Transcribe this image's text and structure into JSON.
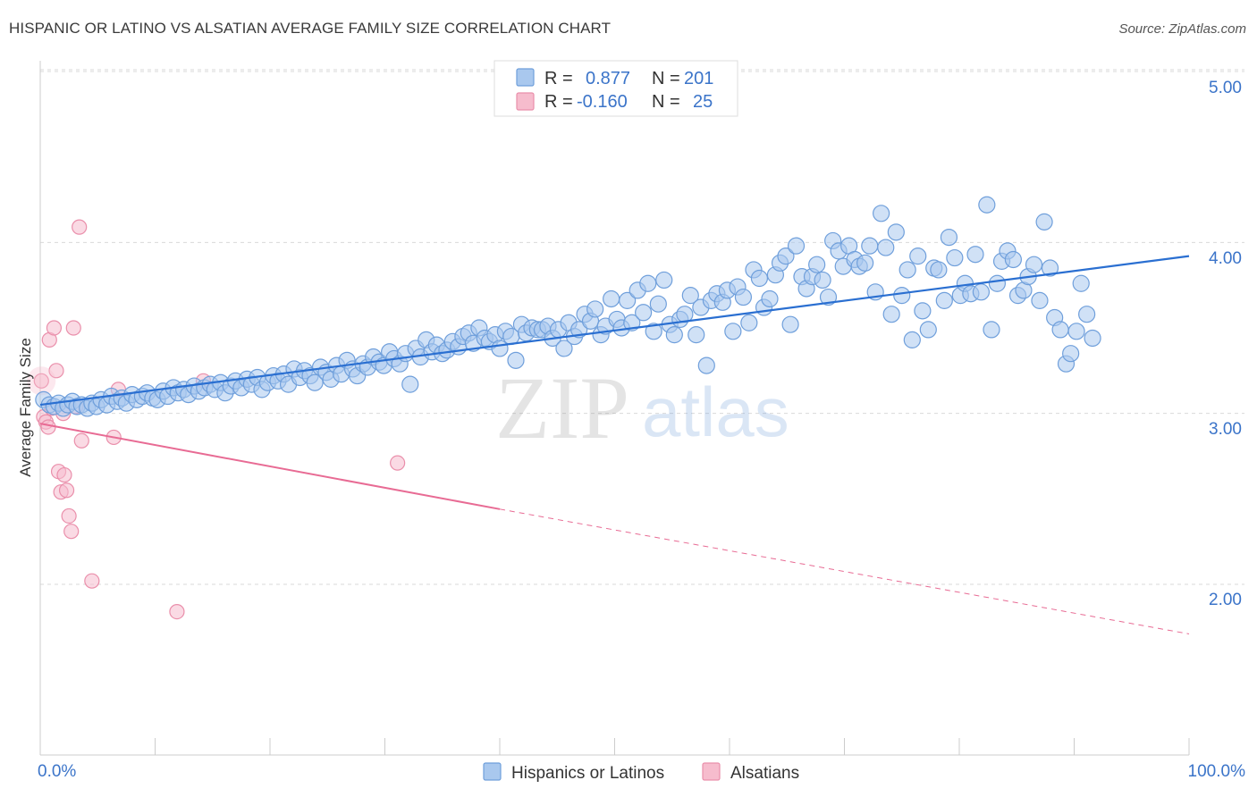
{
  "header": {
    "title": "HISPANIC OR LATINO VS ALSATIAN AVERAGE FAMILY SIZE CORRELATION CHART",
    "source": "Source: ZipAtlas.com"
  },
  "watermark": {
    "zip": "ZIP",
    "atlas": "atlas"
  },
  "colors": {
    "blue_fill": "#a9c8ee",
    "blue_stroke": "#6f9fdb",
    "blue_line": "#2a6fd1",
    "pink_fill": "#f6bccd",
    "pink_stroke": "#ea8fab",
    "pink_line": "#e86b94",
    "tick_text": "#3b74c9",
    "grid": "#d9d9d9"
  },
  "legend": {
    "rows": [
      {
        "r_label": "R =",
        "r_value": "0.877",
        "n_label": "N =",
        "n_value": "201"
      },
      {
        "r_label": "R =",
        "r_value": "-0.160",
        "n_label": "N =",
        "n_value": "25"
      }
    ]
  },
  "chart_data": {
    "type": "scatter",
    "title": "HISPANIC OR LATINO VS ALSATIAN AVERAGE FAMILY SIZE CORRELATION CHART",
    "xlabel": "",
    "ylabel": "Average Family Size",
    "xlim": [
      0,
      100
    ],
    "ylim": [
      1.0,
      5.1
    ],
    "x_tick_labels": [
      "0.0%",
      "100.0%"
    ],
    "y_ticks": [
      2.0,
      3.0,
      4.0,
      5.0
    ],
    "y_tick_labels": [
      "2.00",
      "3.00",
      "4.00",
      "5.00"
    ],
    "grid": true,
    "legend_position": "top-center",
    "series": [
      {
        "name": "Hispanics or Latinos",
        "color": "#a9c8ee",
        "r": 0.877,
        "n": 201,
        "trend": {
          "x": [
            0,
            100
          ],
          "y": [
            3.05,
            3.92
          ]
        },
        "points": [
          [
            0.3,
            3.08
          ],
          [
            0.8,
            3.05
          ],
          [
            1.2,
            3.04
          ],
          [
            1.6,
            3.06
          ],
          [
            2.0,
            3.03
          ],
          [
            2.4,
            3.05
          ],
          [
            2.8,
            3.07
          ],
          [
            3.2,
            3.04
          ],
          [
            3.6,
            3.05
          ],
          [
            4.1,
            3.03
          ],
          [
            4.5,
            3.06
          ],
          [
            4.9,
            3.04
          ],
          [
            5.3,
            3.08
          ],
          [
            5.8,
            3.05
          ],
          [
            6.2,
            3.1
          ],
          [
            6.7,
            3.07
          ],
          [
            7.1,
            3.09
          ],
          [
            7.5,
            3.06
          ],
          [
            8.0,
            3.11
          ],
          [
            8.4,
            3.08
          ],
          [
            8.9,
            3.1
          ],
          [
            9.3,
            3.12
          ],
          [
            9.8,
            3.09
          ],
          [
            10.2,
            3.08
          ],
          [
            10.7,
            3.13
          ],
          [
            11.1,
            3.1
          ],
          [
            11.6,
            3.15
          ],
          [
            12.0,
            3.12
          ],
          [
            12.5,
            3.14
          ],
          [
            12.9,
            3.11
          ],
          [
            13.4,
            3.16
          ],
          [
            13.8,
            3.13
          ],
          [
            14.3,
            3.15
          ],
          [
            14.8,
            3.17
          ],
          [
            15.2,
            3.14
          ],
          [
            15.7,
            3.18
          ],
          [
            16.1,
            3.12
          ],
          [
            16.6,
            3.16
          ],
          [
            17.0,
            3.19
          ],
          [
            17.5,
            3.15
          ],
          [
            18.0,
            3.2
          ],
          [
            18.4,
            3.17
          ],
          [
            18.9,
            3.21
          ],
          [
            19.3,
            3.14
          ],
          [
            19.8,
            3.18
          ],
          [
            20.3,
            3.22
          ],
          [
            20.7,
            3.19
          ],
          [
            21.2,
            3.23
          ],
          [
            21.6,
            3.17
          ],
          [
            22.1,
            3.26
          ],
          [
            22.6,
            3.21
          ],
          [
            23.0,
            3.25
          ],
          [
            23.5,
            3.22
          ],
          [
            23.9,
            3.18
          ],
          [
            24.4,
            3.27
          ],
          [
            24.9,
            3.24
          ],
          [
            25.3,
            3.2
          ],
          [
            25.8,
            3.28
          ],
          [
            26.2,
            3.23
          ],
          [
            26.7,
            3.31
          ],
          [
            27.2,
            3.26
          ],
          [
            27.6,
            3.22
          ],
          [
            28.1,
            3.29
          ],
          [
            28.5,
            3.27
          ],
          [
            29.0,
            3.33
          ],
          [
            29.5,
            3.3
          ],
          [
            29.9,
            3.28
          ],
          [
            30.4,
            3.36
          ],
          [
            30.8,
            3.32
          ],
          [
            31.3,
            3.29
          ],
          [
            31.8,
            3.35
          ],
          [
            32.2,
            3.17
          ],
          [
            32.7,
            3.38
          ],
          [
            33.1,
            3.33
          ],
          [
            33.6,
            3.43
          ],
          [
            34.1,
            3.36
          ],
          [
            34.5,
            3.4
          ],
          [
            35.0,
            3.35
          ],
          [
            35.4,
            3.37
          ],
          [
            35.9,
            3.42
          ],
          [
            36.4,
            3.39
          ],
          [
            36.8,
            3.45
          ],
          [
            37.3,
            3.47
          ],
          [
            37.7,
            3.41
          ],
          [
            38.2,
            3.5
          ],
          [
            38.7,
            3.44
          ],
          [
            39.1,
            3.42
          ],
          [
            39.6,
            3.46
          ],
          [
            40.0,
            3.38
          ],
          [
            40.5,
            3.48
          ],
          [
            41.0,
            3.45
          ],
          [
            41.4,
            3.31
          ],
          [
            41.9,
            3.52
          ],
          [
            42.3,
            3.47
          ],
          [
            42.8,
            3.5
          ],
          [
            43.3,
            3.49
          ],
          [
            43.7,
            3.49
          ],
          [
            44.2,
            3.51
          ],
          [
            44.6,
            3.44
          ],
          [
            45.1,
            3.49
          ],
          [
            45.6,
            3.38
          ],
          [
            46.0,
            3.53
          ],
          [
            46.5,
            3.45
          ],
          [
            46.9,
            3.49
          ],
          [
            47.4,
            3.58
          ],
          [
            47.9,
            3.54
          ],
          [
            48.3,
            3.61
          ],
          [
            48.8,
            3.46
          ],
          [
            49.2,
            3.51
          ],
          [
            49.7,
            3.67
          ],
          [
            50.2,
            3.55
          ],
          [
            50.6,
            3.5
          ],
          [
            51.1,
            3.66
          ],
          [
            51.5,
            3.53
          ],
          [
            52.0,
            3.72
          ],
          [
            52.5,
            3.59
          ],
          [
            52.9,
            3.76
          ],
          [
            53.4,
            3.48
          ],
          [
            53.8,
            3.64
          ],
          [
            54.3,
            3.78
          ],
          [
            54.8,
            3.52
          ],
          [
            55.2,
            3.46
          ],
          [
            55.7,
            3.55
          ],
          [
            56.1,
            3.58
          ],
          [
            56.6,
            3.69
          ],
          [
            57.1,
            3.46
          ],
          [
            57.5,
            3.62
          ],
          [
            58.0,
            3.28
          ],
          [
            58.4,
            3.66
          ],
          [
            58.9,
            3.7
          ],
          [
            59.4,
            3.65
          ],
          [
            59.8,
            3.72
          ],
          [
            60.3,
            3.48
          ],
          [
            60.7,
            3.74
          ],
          [
            61.2,
            3.68
          ],
          [
            61.7,
            3.53
          ],
          [
            62.1,
            3.84
          ],
          [
            62.6,
            3.79
          ],
          [
            63.0,
            3.62
          ],
          [
            63.5,
            3.67
          ],
          [
            64.0,
            3.81
          ],
          [
            64.4,
            3.88
          ],
          [
            64.9,
            3.92
          ],
          [
            65.3,
            3.52
          ],
          [
            65.8,
            3.98
          ],
          [
            66.3,
            3.8
          ],
          [
            66.7,
            3.73
          ],
          [
            67.2,
            3.8
          ],
          [
            67.6,
            3.87
          ],
          [
            68.1,
            3.78
          ],
          [
            68.6,
            3.68
          ],
          [
            69.0,
            4.01
          ],
          [
            69.5,
            3.95
          ],
          [
            69.9,
            3.86
          ],
          [
            70.4,
            3.98
          ],
          [
            70.9,
            3.9
          ],
          [
            71.3,
            3.86
          ],
          [
            71.8,
            3.88
          ],
          [
            72.2,
            3.98
          ],
          [
            72.7,
            3.71
          ],
          [
            73.2,
            4.17
          ],
          [
            73.6,
            3.97
          ],
          [
            74.1,
            3.58
          ],
          [
            74.5,
            4.06
          ],
          [
            75.0,
            3.69
          ],
          [
            75.5,
            3.84
          ],
          [
            75.9,
            3.43
          ],
          [
            76.4,
            3.92
          ],
          [
            76.8,
            3.6
          ],
          [
            77.3,
            3.49
          ],
          [
            77.8,
            3.85
          ],
          [
            78.2,
            3.84
          ],
          [
            78.7,
            3.66
          ],
          [
            79.1,
            4.03
          ],
          [
            79.6,
            3.91
          ],
          [
            80.1,
            3.69
          ],
          [
            80.5,
            3.76
          ],
          [
            81.0,
            3.7
          ],
          [
            81.4,
            3.93
          ],
          [
            81.9,
            3.71
          ],
          [
            82.4,
            4.22
          ],
          [
            82.8,
            3.49
          ],
          [
            83.3,
            3.76
          ],
          [
            83.7,
            3.89
          ],
          [
            84.2,
            3.95
          ],
          [
            84.7,
            3.9
          ],
          [
            85.1,
            3.69
          ],
          [
            85.6,
            3.72
          ],
          [
            86.0,
            3.8
          ],
          [
            86.5,
            3.87
          ],
          [
            87.0,
            3.66
          ],
          [
            87.4,
            4.12
          ],
          [
            87.9,
            3.85
          ],
          [
            88.3,
            3.56
          ],
          [
            88.8,
            3.49
          ],
          [
            89.3,
            3.29
          ],
          [
            89.7,
            3.35
          ],
          [
            90.2,
            3.48
          ],
          [
            90.6,
            3.76
          ],
          [
            91.1,
            3.58
          ],
          [
            91.6,
            3.44
          ]
        ]
      },
      {
        "name": "Alsatians",
        "color": "#f6bccd",
        "r": -0.16,
        "n": 25,
        "trend": {
          "x": [
            0,
            40
          ],
          "y": [
            2.94,
            2.44
          ],
          "dashed_extension": {
            "x": [
              40,
              100
            ],
            "y": [
              2.44,
              1.71
            ]
          }
        },
        "points": [
          [
            0.1,
            3.19
          ],
          [
            0.3,
            2.98
          ],
          [
            0.5,
            2.95
          ],
          [
            0.7,
            2.92
          ],
          [
            0.8,
            3.43
          ],
          [
            1.0,
            3.03
          ],
          [
            1.2,
            3.5
          ],
          [
            1.4,
            3.25
          ],
          [
            1.6,
            2.66
          ],
          [
            1.8,
            2.54
          ],
          [
            2.0,
            3.0
          ],
          [
            2.1,
            2.64
          ],
          [
            2.3,
            2.55
          ],
          [
            2.5,
            2.4
          ],
          [
            2.7,
            2.31
          ],
          [
            2.9,
            3.5
          ],
          [
            3.1,
            3.04
          ],
          [
            3.4,
            4.09
          ],
          [
            3.6,
            2.84
          ],
          [
            4.5,
            2.02
          ],
          [
            6.4,
            2.86
          ],
          [
            6.8,
            3.14
          ],
          [
            11.9,
            1.84
          ],
          [
            14.2,
            3.19
          ],
          [
            31.1,
            2.71
          ]
        ]
      }
    ]
  },
  "bottom_legend": {
    "items": [
      {
        "label": "Hispanics or Latinos"
      },
      {
        "label": "Alsatians"
      }
    ]
  }
}
